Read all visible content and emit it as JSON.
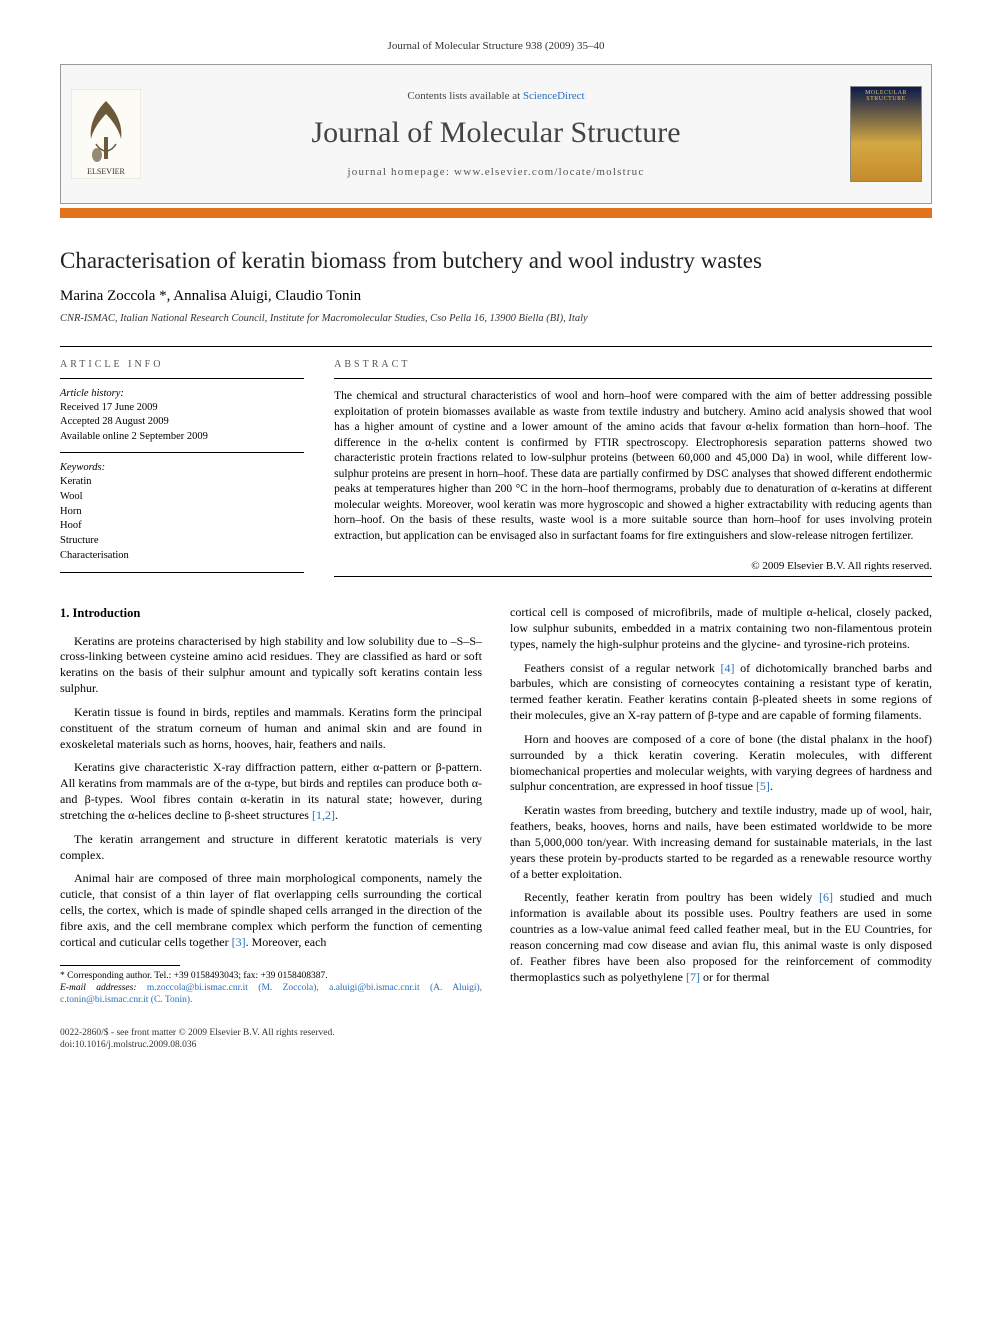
{
  "citation": "Journal of Molecular Structure 938 (2009) 35–40",
  "header": {
    "contents_prefix": "Contents lists available at ",
    "contents_link": "ScienceDirect",
    "journal_name": "Journal of Molecular Structure",
    "homepage_label": "journal homepage: www.elsevier.com/locate/molstruc",
    "publisher_logo_label": "ELSEVIER",
    "cover_label": "MOLECULAR STRUCTURE"
  },
  "colors": {
    "accent_bar": "#e2721b",
    "link": "#2a6fbb",
    "header_bg": "#f7f7f7",
    "text": "#000000",
    "muted": "#555555"
  },
  "article": {
    "title": "Characterisation of keratin biomass from butchery and wool industry wastes",
    "authors": "Marina Zoccola *, Annalisa Aluigi, Claudio Tonin",
    "affiliation": "CNR-ISMAC, Italian National Research Council, Institute for Macromolecular Studies, Cso Pella 16, 13900 Biella (BI), Italy"
  },
  "info": {
    "label": "ARTICLE INFO",
    "history_label": "Article history:",
    "received": "Received 17 June 2009",
    "accepted": "Accepted 28 August 2009",
    "online": "Available online 2 September 2009",
    "keywords_label": "Keywords:",
    "keywords": [
      "Keratin",
      "Wool",
      "Horn",
      "Hoof",
      "Structure",
      "Characterisation"
    ]
  },
  "abstract": {
    "label": "ABSTRACT",
    "body": "The chemical and structural characteristics of wool and horn–hoof were compared with the aim of better addressing possible exploitation of protein biomasses available as waste from textile industry and butchery. Amino acid analysis showed that wool has a higher amount of cystine and a lower amount of the amino acids that favour α-helix formation than horn–hoof. The difference in the α-helix content is confirmed by FTIR spectroscopy. Electrophoresis separation patterns showed two characteristic protein fractions related to low-sulphur proteins (between 60,000 and 45,000 Da) in wool, while different low-sulphur proteins are present in horn–hoof. These data are partially confirmed by DSC analyses that showed different endothermic peaks at temperatures higher than 200 °C in the horn–hoof thermograms, probably due to denaturation of α-keratins at different molecular weights. Moreover, wool keratin was more hygroscopic and showed a higher extractability with reducing agents than horn–hoof. On the basis of these results, waste wool is a more suitable source than horn–hoof for uses involving protein extraction, but application can be envisaged also in surfactant foams for fire extinguishers and slow-release nitrogen fertilizer.",
    "copyright": "© 2009 Elsevier B.V. All rights reserved."
  },
  "body": {
    "heading1": "1. Introduction",
    "left_paras": [
      "Keratins are proteins characterised by high stability and low solubility due to –S–S– cross-linking between cysteine amino acid residues. They are classified as hard or soft keratins on the basis of their sulphur amount and typically soft keratins contain less sulphur.",
      "Keratin tissue is found in birds, reptiles and mammals. Keratins form the principal constituent of the stratum corneum of human and animal skin and are found in exoskeletal materials such as horns, hooves, hair, feathers and nails.",
      "Keratins give characteristic X-ray diffraction pattern, either α-pattern or β-pattern. All keratins from mammals are of the α-type, but birds and reptiles can produce both α- and β-types. Wool fibres contain α-keratin in its natural state; however, during stretching the α-helices decline to β-sheet structures [1,2].",
      "The keratin arrangement and structure in different keratotic materials is very complex.",
      "Animal hair are composed of three main morphological components, namely the cuticle, that consist of a thin layer of flat overlapping cells surrounding the cortical cells, the cortex, which is made of spindle shaped cells arranged in the direction of the fibre axis, and the cell membrane complex which perform the function of cementing cortical and cuticular cells together [3]. Moreover, each"
    ],
    "right_paras": [
      "cortical cell is composed of microfibrils, made of multiple α-helical, closely packed, low sulphur subunits, embedded in a matrix containing two non-filamentous protein types, namely the high-sulphur proteins and the glycine- and tyrosine-rich proteins.",
      "Feathers consist of a regular network [4] of dichotomically branched barbs and barbules, which are consisting of corneocytes containing a resistant type of keratin, termed feather keratin. Feather keratins contain β-pleated sheets in some regions of their molecules, give an X-ray pattern of β-type and are capable of forming filaments.",
      "Horn and hooves are composed of a core of bone (the distal phalanx in the hoof) surrounded by a thick keratin covering. Keratin molecules, with different biomechanical properties and molecular weights, with varying degrees of hardness and sulphur concentration, are expressed in hoof tissue [5].",
      "Keratin wastes from breeding, butchery and textile industry, made up of wool, hair, feathers, beaks, hooves, horns and nails, have been estimated worldwide to be more than 5,000,000 ton/year. With increasing demand for sustainable materials, in the last years these protein by-products started to be regarded as a renewable resource worthy of a better exploitation.",
      "Recently, feather keratin from poultry has been widely [6] studied and much information is available about its possible uses. Poultry feathers are used in some countries as a low-value animal feed called feather meal, but in the EU Countries, for reason concerning mad cow disease and avian flu, this animal waste is only disposed of. Feather fibres have been also proposed for the reinforcement of commodity thermoplastics such as polyethylene [7] or for thermal"
    ]
  },
  "footnotes": {
    "corresponding": "* Corresponding author. Tel.: +39 0158493043; fax: +39 0158408387.",
    "email_label": "E-mail addresses:",
    "emails": "m.zoccola@bi.ismac.cnr.it (M. Zoccola), a.aluigi@bi.ismac.cnr.it (A. Aluigi), c.tonin@bi.ismac.cnr.it (C. Tonin)."
  },
  "bottom": {
    "line1": "0022-2860/$ - see front matter © 2009 Elsevier B.V. All rights reserved.",
    "line2": "doi:10.1016/j.molstruc.2009.08.036"
  },
  "typography": {
    "title_fontsize_pt": 17,
    "journal_name_fontsize_pt": 22,
    "body_fontsize_pt": 9,
    "abstract_fontsize_pt": 8.5,
    "footnote_fontsize_pt": 7
  }
}
